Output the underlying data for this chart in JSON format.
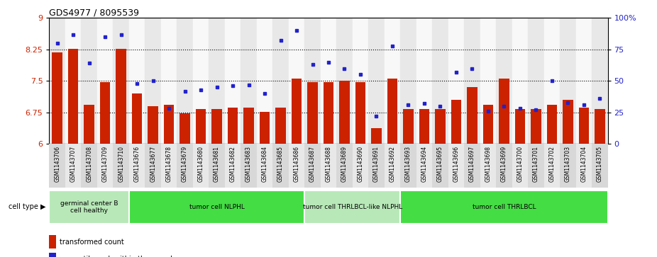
{
  "title": "GDS4977 / 8095539",
  "samples": [
    "GSM1143706",
    "GSM1143707",
    "GSM1143708",
    "GSM1143709",
    "GSM1143710",
    "GSM1143676",
    "GSM1143677",
    "GSM1143678",
    "GSM1143679",
    "GSM1143680",
    "GSM1143681",
    "GSM1143682",
    "GSM1143683",
    "GSM1143684",
    "GSM1143685",
    "GSM1143686",
    "GSM1143687",
    "GSM1143688",
    "GSM1143689",
    "GSM1143690",
    "GSM1143691",
    "GSM1143692",
    "GSM1143693",
    "GSM1143694",
    "GSM1143695",
    "GSM1143696",
    "GSM1143697",
    "GSM1143698",
    "GSM1143699",
    "GSM1143700",
    "GSM1143701",
    "GSM1143702",
    "GSM1143703",
    "GSM1143704",
    "GSM1143705"
  ],
  "bar_values": [
    8.18,
    8.27,
    6.93,
    7.48,
    8.27,
    7.2,
    6.9,
    6.93,
    6.73,
    6.83,
    6.83,
    6.87,
    6.87,
    6.76,
    6.87,
    7.55,
    7.48,
    7.48,
    7.5,
    7.48,
    6.37,
    7.55,
    6.83,
    6.83,
    6.83,
    7.05,
    7.35,
    6.93,
    7.55,
    6.83,
    6.83,
    6.93,
    7.05,
    6.87,
    6.83
  ],
  "percentile_values": [
    80,
    87,
    64,
    85,
    87,
    48,
    50,
    28,
    42,
    43,
    45,
    46,
    47,
    40,
    82,
    90,
    63,
    65,
    60,
    55,
    22,
    78,
    31,
    32,
    30,
    57,
    60,
    26,
    30,
    28,
    27,
    50,
    33,
    31,
    36
  ],
  "cell_type_groups": [
    {
      "label": "germinal center B\ncell healthy",
      "start": 0,
      "end": 5,
      "color": "#b8e8b8"
    },
    {
      "label": "tumor cell NLPHL",
      "start": 5,
      "end": 16,
      "color": "#44dd44"
    },
    {
      "label": "tumor cell THRLBCL-like NLPHL",
      "start": 16,
      "end": 22,
      "color": "#b8e8b8"
    },
    {
      "label": "tumor cell THRLBCL",
      "start": 22,
      "end": 35,
      "color": "#44dd44"
    }
  ],
  "bar_color": "#CC2200",
  "dot_color": "#2222CC",
  "ylim_left": [
    6,
    9
  ],
  "yticks_left": [
    6,
    6.75,
    7.5,
    8.25,
    9
  ],
  "yticks_right": [
    0,
    25,
    50,
    75,
    100
  ],
  "hlines": [
    6.75,
    7.5,
    8.25
  ],
  "title_fontsize": 9,
  "tick_label_fontsize": 5.5,
  "bar_width": 0.65
}
